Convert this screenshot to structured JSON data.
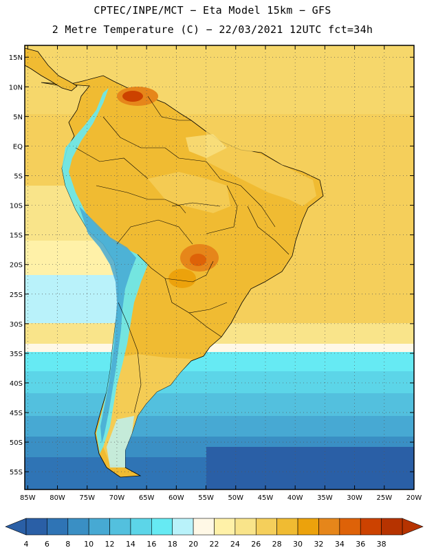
{
  "header": {
    "line1": "CPTEC/INPE/MCT −  Eta Model 15km − GFS",
    "line2": "2 Metre Temperature (C) − 22/03/2021 12UTC fct=34h"
  },
  "map": {
    "lat_labels": [
      "15N",
      "10N",
      "5N",
      "EQ",
      "5S",
      "10S",
      "15S",
      "20S",
      "25S",
      "30S",
      "35S",
      "40S",
      "45S",
      "50S",
      "55S"
    ],
    "lon_labels": [
      "85W",
      "80W",
      "75W",
      "70W",
      "65W",
      "60W",
      "55W",
      "50W",
      "45W",
      "40W",
      "35W",
      "30W",
      "25W",
      "20W"
    ],
    "lat_values": [
      15,
      10,
      5,
      0,
      -5,
      -10,
      -15,
      -20,
      -25,
      -30,
      -35,
      -40,
      -45,
      -50,
      -55
    ],
    "lon_values": [
      -85,
      -80,
      -75,
      -70,
      -65,
      -60,
      -55,
      -50,
      -45,
      -40,
      -35,
      -30,
      -25,
      -20
    ],
    "lat_range": [
      -58,
      17
    ],
    "lon_range": [
      -85.5,
      -20
    ]
  },
  "colorbar": {
    "labels": [
      "4",
      "6",
      "8",
      "10",
      "12",
      "14",
      "16",
      "18",
      "20",
      "22",
      "24",
      "26",
      "28",
      "30",
      "32",
      "34",
      "36",
      "38"
    ],
    "colors": [
      "#2a5fa6",
      "#2f74b5",
      "#3a8fc4",
      "#47a9d3",
      "#53c0de",
      "#5cd5e8",
      "#66eaf3",
      "#b9f2fa",
      "#fff8e6",
      "#fff1a8",
      "#f9e48a",
      "#f5cf5b",
      "#f0bb32",
      "#eca20c",
      "#e6861a",
      "#de6208",
      "#cc4200",
      "#b63300"
    ],
    "under_color": "#2a5fa6",
    "over_color": "#b63300"
  }
}
